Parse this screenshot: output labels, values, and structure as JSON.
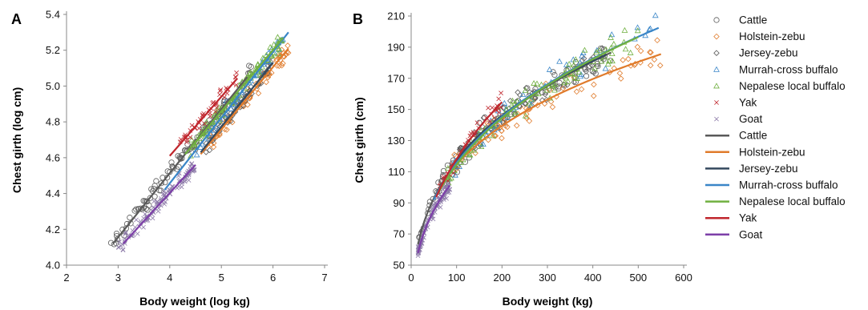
{
  "colors": {
    "Cattle": "#5a5a5a",
    "Holstein-zebu": "#e07b2b",
    "Jersey-zebu": "#34495e",
    "Murrah-cross buffalo": "#3a86c8",
    "Nepalese local buffalo": "#70b040",
    "Yak": "#c0262d",
    "Goat": "#7d3fa8"
  },
  "marker_legend": [
    {
      "label": "Cattle",
      "marker": "circle-open",
      "color": "#5a5a5a"
    },
    {
      "label": "Holstein-zebu",
      "marker": "diamond-open",
      "color": "#e07b2b"
    },
    {
      "label": "Jersey-zebu",
      "marker": "diamond-open",
      "color": "#5a5a5a"
    },
    {
      "label": "Murrah-cross buffalo",
      "marker": "triangle-open",
      "color": "#3a86c8"
    },
    {
      "label": "Nepalese local buffalo",
      "marker": "triangle-open",
      "color": "#70b040"
    },
    {
      "label": "Yak",
      "marker": "x",
      "color": "#c0262d"
    },
    {
      "label": "Goat",
      "marker": "x",
      "color": "#8c7aa8"
    }
  ],
  "line_legend": [
    {
      "label": "Cattle",
      "color": "#5a5a5a"
    },
    {
      "label": "Holstein-zebu",
      "color": "#e07b2b"
    },
    {
      "label": "Jersey-zebu",
      "color": "#34495e"
    },
    {
      "label": "Murrah-cross buffalo",
      "color": "#3a86c8"
    },
    {
      "label": "Nepalese local buffalo",
      "color": "#70b040"
    },
    {
      "label": "Yak",
      "color": "#c0262d"
    },
    {
      "label": "Goat",
      "color": "#7d3fa8"
    }
  ],
  "chart_data": [
    {
      "panel": "A",
      "type": "scatter",
      "xlabel": "Body weight (log kg)",
      "ylabel": "Chest girth (log cm)",
      "xlim": [
        2,
        7
      ],
      "ylim": [
        4.0,
        5.4
      ],
      "xticks": [
        2,
        3,
        4,
        5,
        6,
        7
      ],
      "yticks": [
        4.0,
        4.2,
        4.4,
        4.6,
        4.8,
        5.0,
        5.2,
        5.4
      ],
      "ytick_labels": [
        "4.0",
        "4.2",
        "4.4",
        "4.6",
        "4.8",
        "5.0",
        "5.2",
        "5.4"
      ],
      "grid": false,
      "fits": [
        {
          "name": "Cattle",
          "x": [
            2.9,
            5.5
          ],
          "y": [
            4.12,
            5.05
          ]
        },
        {
          "name": "Holstein-zebu",
          "x": [
            4.6,
            6.3
          ],
          "y": [
            4.62,
            5.21
          ]
        },
        {
          "name": "Jersey-zebu",
          "x": [
            4.6,
            6.0
          ],
          "y": [
            4.63,
            5.13
          ]
        },
        {
          "name": "Murrah-cross buffalo",
          "x": [
            3.9,
            6.3
          ],
          "y": [
            4.42,
            5.3
          ]
        },
        {
          "name": "Nepalese local buffalo",
          "x": [
            4.3,
            6.2
          ],
          "y": [
            4.62,
            5.27
          ]
        },
        {
          "name": "Yak",
          "x": [
            4.0,
            5.3
          ],
          "y": [
            4.61,
            5.04
          ]
        },
        {
          "name": "Goat",
          "x": [
            3.1,
            4.5
          ],
          "y": [
            4.12,
            4.56
          ]
        }
      ],
      "points": [
        {
          "name": "Cattle",
          "x_range": [
            2.85,
            5.6
          ],
          "n": 110
        },
        {
          "name": "Holstein-zebu",
          "x_range": [
            4.8,
            6.3
          ],
          "n": 70
        },
        {
          "name": "Jersey-zebu",
          "x_range": [
            4.7,
            6.0
          ],
          "n": 60
        },
        {
          "name": "Murrah-cross buffalo",
          "x_range": [
            4.5,
            6.2
          ],
          "n": 50
        },
        {
          "name": "Nepalese local buffalo",
          "x_range": [
            4.4,
            6.2
          ],
          "n": 90
        },
        {
          "name": "Yak",
          "x_range": [
            4.2,
            5.3
          ],
          "n": 45
        },
        {
          "name": "Goat",
          "x_range": [
            3.0,
            4.5
          ],
          "n": 110
        }
      ]
    },
    {
      "panel": "B",
      "type": "scatter",
      "xlabel": "Body weight (kg)",
      "ylabel": "Chest girth (cm)",
      "xlim": [
        0,
        600
      ],
      "ylim": [
        50,
        210
      ],
      "xticks": [
        0,
        100,
        200,
        300,
        400,
        500,
        600
      ],
      "yticks": [
        50,
        70,
        90,
        110,
        130,
        150,
        170,
        190,
        210
      ],
      "grid": false,
      "fits": [
        {
          "name": "Cattle",
          "x": [
            15,
            440
          ],
          "a": 26.6,
          "b": 0.32
        },
        {
          "name": "Holstein-zebu",
          "x": [
            90,
            550
          ],
          "a": 31.3,
          "b": 0.282
        },
        {
          "name": "Jersey-zebu",
          "x": [
            90,
            430
          ],
          "a": 28.1,
          "b": 0.311
        },
        {
          "name": "Murrah-cross buffalo",
          "x": [
            50,
            545
          ],
          "a": 25.3,
          "b": 0.33
        },
        {
          "name": "Nepalese local buffalo",
          "x": [
            60,
            500
          ],
          "a": 24.5,
          "b": 0.335
        },
        {
          "name": "Yak",
          "x": [
            55,
            200
          ],
          "a": 19.7,
          "b": 0.389
        },
        {
          "name": "Goat",
          "x": [
            15,
            85
          ],
          "a": 24.1,
          "b": 0.323
        }
      ],
      "points": [
        {
          "name": "Cattle",
          "x_range": [
            15,
            440
          ],
          "n": 110
        },
        {
          "name": "Holstein-zebu",
          "x_range": [
            90,
            550
          ],
          "n": 70
        },
        {
          "name": "Jersey-zebu",
          "x_range": [
            100,
            430
          ],
          "n": 60
        },
        {
          "name": "Murrah-cross buffalo",
          "x_range": [
            80,
            545
          ],
          "n": 50
        },
        {
          "name": "Nepalese local buffalo",
          "x_range": [
            80,
            500
          ],
          "n": 90
        },
        {
          "name": "Yak",
          "x_range": [
            60,
            200
          ],
          "n": 45
        },
        {
          "name": "Goat",
          "x_range": [
            15,
            85
          ],
          "n": 110
        }
      ]
    }
  ]
}
